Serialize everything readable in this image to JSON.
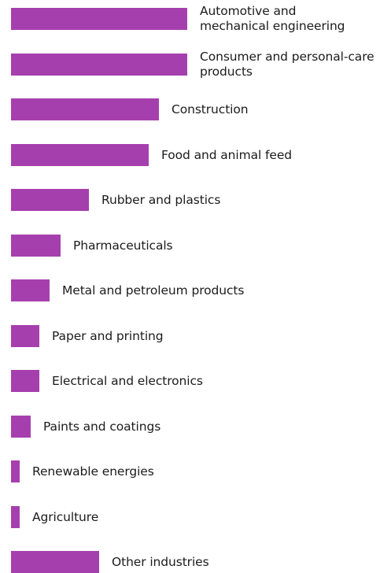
{
  "colors": {
    "bar": "#a63fae",
    "text": "#1b1b1b",
    "background": "#ffffff"
  },
  "chart_data": {
    "type": "bar",
    "orientation": "horizontal",
    "title": "",
    "xlabel": "",
    "ylabel": "",
    "grid": false,
    "legend": "none",
    "xlim": [
      0,
      100
    ],
    "categories": [
      "Automotive and\nmechanical engineering",
      "Consumer and personal-care\nproducts",
      "Construction",
      "Food and animal feed",
      "Rubber and plastics",
      "Pharmaceuticals",
      "Metal and petroleum products",
      "Paper and printing",
      "Electrical and electronics",
      "Paints and coatings",
      "Renewable energies",
      "Agriculture",
      "Other industries"
    ],
    "values": [
      100,
      100,
      84,
      78,
      44,
      28,
      22,
      16,
      16,
      11,
      5,
      5,
      50
    ]
  }
}
